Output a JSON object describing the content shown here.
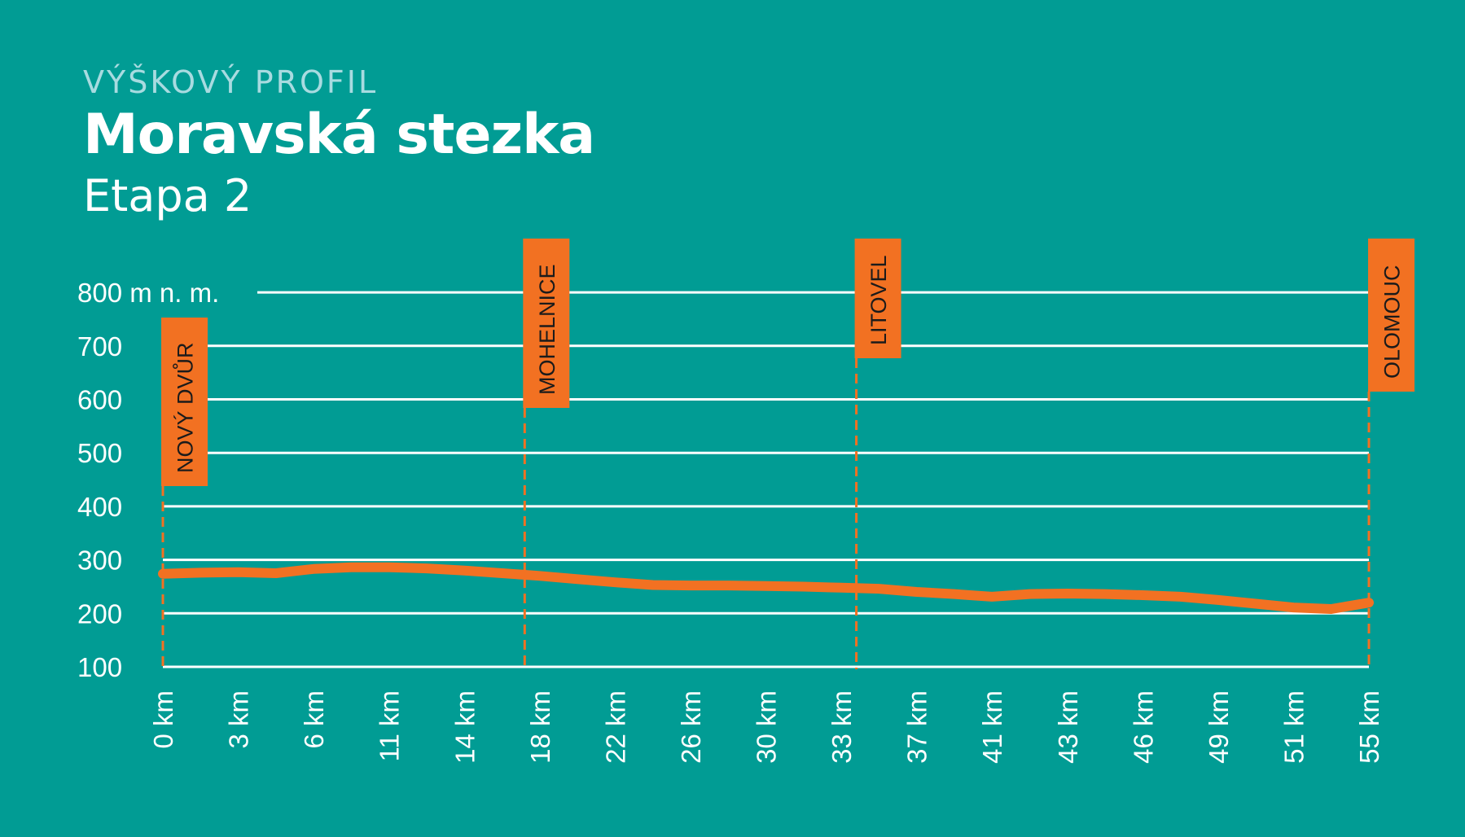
{
  "header": {
    "kicker": "VÝŠKOVÝ PROFIL",
    "title": "Moravská stezka",
    "subtitle": "Etapa 2"
  },
  "colors": {
    "background": "#019c94",
    "grid": "#ffffff",
    "profile": "#f27122",
    "checkpoint": "#f27122",
    "kicker": "#a8dbe0"
  },
  "chart_data": {
    "type": "line",
    "title": "Moravská stezka",
    "ylim": [
      100,
      800
    ],
    "y_ticks": [
      {
        "value": 800,
        "label": "800 m n. m."
      },
      {
        "value": 700,
        "label": "700"
      },
      {
        "value": 600,
        "label": "600"
      },
      {
        "value": 500,
        "label": "500"
      },
      {
        "value": 400,
        "label": "400"
      },
      {
        "value": 300,
        "label": "300"
      },
      {
        "value": 200,
        "label": "200"
      },
      {
        "value": 100,
        "label": "100"
      }
    ],
    "x_ticks": [
      "0 km",
      "3 km",
      "6 km",
      "11 km",
      "14 km",
      "18 km",
      "22 km",
      "26 km",
      "30 km",
      "33 km",
      "37 km",
      "41 km",
      "43 km",
      "46 km",
      "49 km",
      "51 km",
      "55 km"
    ],
    "grid": true,
    "series": [
      {
        "x": [
          0,
          0.5,
          1,
          1.5,
          2,
          2.5,
          3,
          3.5,
          4,
          4.5,
          5,
          5.5,
          6,
          6.5,
          7,
          7.5,
          8,
          8.5,
          9,
          9.5,
          10,
          10.5,
          10.8,
          11,
          11.5,
          12,
          12.5,
          13,
          13.5,
          14,
          14.5,
          15,
          15.5,
          16
        ],
        "y": [
          274,
          276,
          277,
          275,
          283,
          286,
          286,
          284,
          280,
          275,
          270,
          264,
          258,
          253,
          252,
          252,
          251,
          250,
          248,
          246,
          240,
          236,
          233,
          231,
          236,
          237,
          236,
          234,
          231,
          225,
          218,
          211,
          208,
          220
        ]
      }
    ],
    "checkpoints": [
      {
        "name": "NOVÝ DVŮR",
        "x": 0,
        "label_top": 750
      },
      {
        "name": "MOHELNICE",
        "x": 4.8,
        "label_top": 840
      },
      {
        "name": "LITOVEL",
        "x": 9.2,
        "label_top": 840
      },
      {
        "name": "OLOMOUC",
        "x": 16,
        "label_top": 840
      }
    ]
  }
}
